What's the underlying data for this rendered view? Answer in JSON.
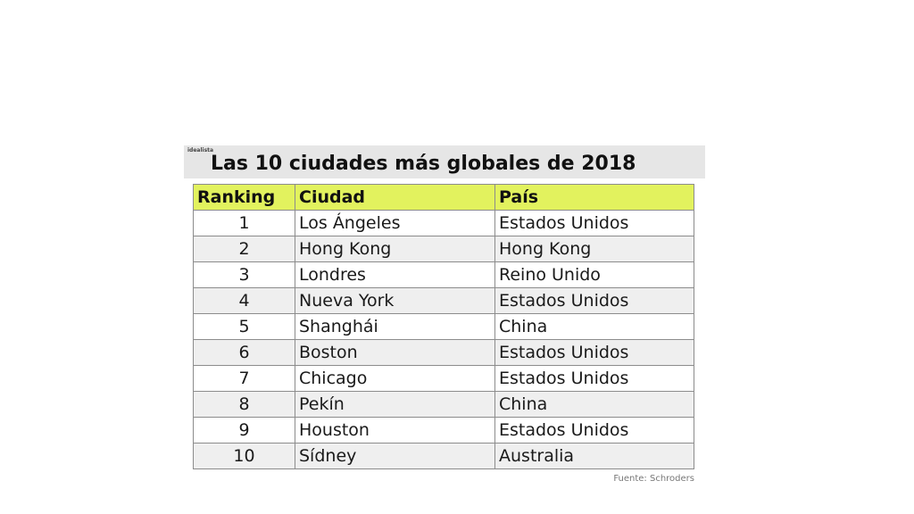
{
  "brand": "idealista",
  "title": "Las 10 ciudades más globales de 2018",
  "table": {
    "headers": [
      "Ranking",
      "Ciudad",
      "País"
    ],
    "rows": [
      [
        "1",
        "Los Ángeles",
        "Estados Unidos"
      ],
      [
        "2",
        "Hong Kong",
        "Hong Kong"
      ],
      [
        "3",
        "Londres",
        "Reino Unido"
      ],
      [
        "4",
        "Nueva York",
        "Estados Unidos"
      ],
      [
        "5",
        "Shanghái",
        "China"
      ],
      [
        "6",
        "Boston",
        "Estados Unidos"
      ],
      [
        "7",
        "Chicago",
        "Estados Unidos"
      ],
      [
        "8",
        "Pekín",
        "China"
      ],
      [
        "9",
        "Houston",
        "Estados Unidos"
      ],
      [
        "10",
        "Sídney",
        "Australia"
      ]
    ]
  },
  "source": "Fuente: Schroders",
  "colors": {
    "header_fill": "#e2f25e",
    "title_band": "#e6e6e6",
    "row_alt": "#efefef"
  }
}
